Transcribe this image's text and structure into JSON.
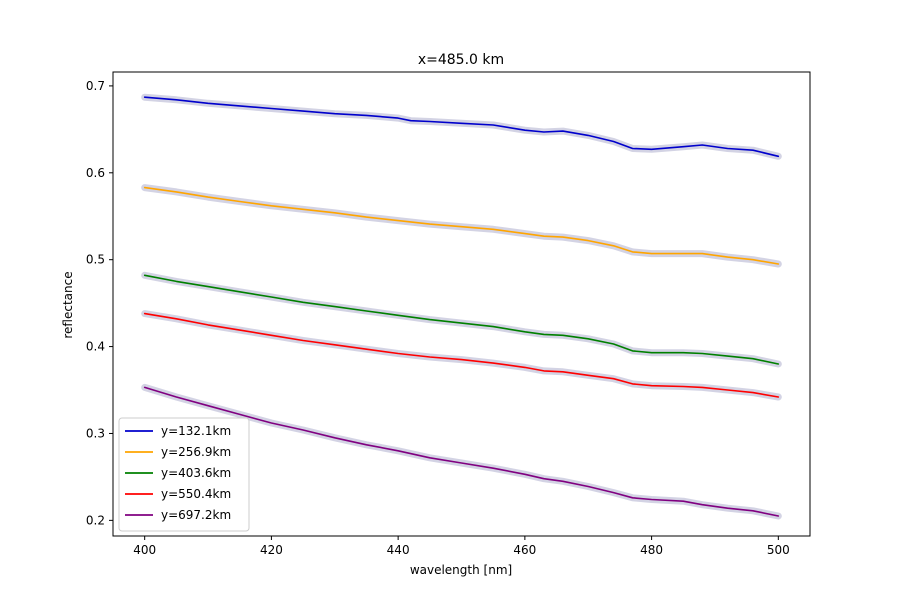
{
  "chart_data": {
    "type": "line",
    "title": "x=485.0 km",
    "xlabel": "wavelength [nm]",
    "ylabel": "reflectance",
    "xlim": [
      395,
      505
    ],
    "ylim": [
      0.182,
      0.716
    ],
    "xticks": [
      400,
      420,
      440,
      460,
      480,
      500
    ],
    "xtick_labels": [
      "400",
      "420",
      "440",
      "460",
      "480",
      "500"
    ],
    "yticks": [
      0.2,
      0.3,
      0.4,
      0.5,
      0.6,
      0.7
    ],
    "ytick_labels": [
      "0.2",
      "0.3",
      "0.4",
      "0.5",
      "0.6",
      "0.7"
    ],
    "grid": false,
    "legend": "lower-left",
    "band_color": "#bcbcd6",
    "series": [
      {
        "name": "y=132.1km",
        "color": "#0000cc",
        "x": [
          400,
          405,
          410,
          415,
          420,
          425,
          430,
          435,
          440,
          442,
          445,
          450,
          455,
          460,
          463,
          466,
          470,
          474,
          477,
          480,
          485,
          488,
          492,
          496,
          500
        ],
        "y": [
          0.687,
          0.684,
          0.68,
          0.677,
          0.674,
          0.671,
          0.668,
          0.666,
          0.663,
          0.66,
          0.659,
          0.657,
          0.655,
          0.649,
          0.647,
          0.648,
          0.643,
          0.636,
          0.628,
          0.627,
          0.63,
          0.632,
          0.628,
          0.626,
          0.619
        ]
      },
      {
        "name": "y=256.9km",
        "color": "#ffa500",
        "x": [
          400,
          405,
          410,
          415,
          420,
          425,
          430,
          435,
          440,
          445,
          450,
          455,
          460,
          463,
          466,
          470,
          474,
          477,
          480,
          485,
          488,
          492,
          496,
          500
        ],
        "y": [
          0.583,
          0.578,
          0.572,
          0.567,
          0.562,
          0.558,
          0.554,
          0.549,
          0.545,
          0.541,
          0.538,
          0.535,
          0.53,
          0.527,
          0.526,
          0.522,
          0.516,
          0.509,
          0.507,
          0.507,
          0.507,
          0.503,
          0.5,
          0.495
        ]
      },
      {
        "name": "y=403.6km",
        "color": "#008000",
        "x": [
          400,
          405,
          410,
          415,
          420,
          425,
          430,
          435,
          440,
          445,
          450,
          455,
          460,
          463,
          466,
          470,
          474,
          477,
          480,
          485,
          488,
          492,
          496,
          500
        ],
        "y": [
          0.482,
          0.475,
          0.469,
          0.463,
          0.457,
          0.451,
          0.446,
          0.441,
          0.436,
          0.431,
          0.427,
          0.423,
          0.417,
          0.414,
          0.413,
          0.409,
          0.403,
          0.395,
          0.393,
          0.393,
          0.392,
          0.389,
          0.386,
          0.38
        ]
      },
      {
        "name": "y=550.4km",
        "color": "#ff0000",
        "x": [
          400,
          405,
          410,
          415,
          420,
          425,
          430,
          435,
          440,
          445,
          450,
          455,
          460,
          463,
          466,
          470,
          474,
          477,
          480,
          485,
          488,
          492,
          496,
          500
        ],
        "y": [
          0.438,
          0.432,
          0.425,
          0.419,
          0.413,
          0.407,
          0.402,
          0.397,
          0.392,
          0.388,
          0.385,
          0.381,
          0.376,
          0.372,
          0.371,
          0.367,
          0.363,
          0.357,
          0.355,
          0.354,
          0.353,
          0.35,
          0.347,
          0.342
        ]
      },
      {
        "name": "y=697.2km",
        "color": "#800080",
        "x": [
          400,
          405,
          410,
          415,
          420,
          425,
          430,
          435,
          440,
          445,
          450,
          455,
          460,
          463,
          466,
          470,
          474,
          477,
          480,
          485,
          488,
          492,
          496,
          500
        ],
        "y": [
          0.353,
          0.342,
          0.332,
          0.322,
          0.312,
          0.304,
          0.295,
          0.287,
          0.28,
          0.272,
          0.266,
          0.26,
          0.253,
          0.248,
          0.245,
          0.239,
          0.232,
          0.226,
          0.224,
          0.222,
          0.218,
          0.214,
          0.211,
          0.205
        ]
      }
    ]
  }
}
